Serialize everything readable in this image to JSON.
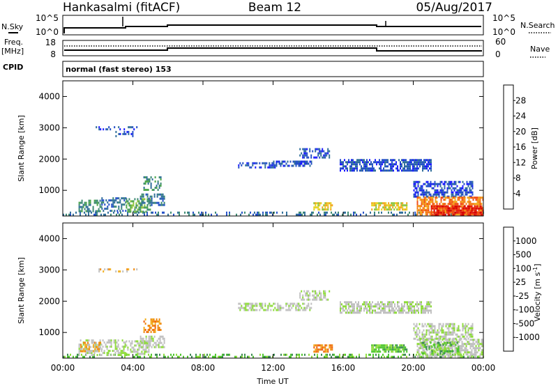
{
  "header": {
    "station": "Hankasalmi (fitACF)",
    "beam": "Beam 12",
    "date": "05/Aug/2017"
  },
  "status_panels": {
    "nsky_label": "N.Sky",
    "nsearch_label": "N.Search",
    "freq_label_1": "Freq.",
    "freq_label_2": "[MHz]",
    "nave_label": "Nave",
    "cpid_label": "CPID",
    "cpid_text": "normal (fast stereo) 153",
    "noise_ticks_left": [
      "10^5",
      "10^0"
    ],
    "noise_ticks_right": [
      "10^5",
      "10^0"
    ],
    "freq_ticks_left": [
      "18",
      "8"
    ],
    "nave_ticks_right": [
      "60",
      "0"
    ]
  },
  "chart_data": [
    {
      "type": "heatmap",
      "quantity": "power",
      "ylabel": "Slant Range [km]",
      "xlabel": "Time UT",
      "xlim_hours": [
        0,
        24
      ],
      "ylim_km": [
        180,
        4500
      ],
      "x_ticks": [
        "00:00",
        "04:00",
        "08:00",
        "12:00",
        "16:00",
        "20:00",
        "00:00"
      ],
      "y_ticks": [
        "1000",
        "2000",
        "3000",
        "4000"
      ],
      "colorbar": {
        "label": "Power [dB]",
        "tick_labels": [
          "4",
          "8",
          "12",
          "16",
          "20",
          "24",
          "28"
        ],
        "colors": [
          "#1a1aff",
          "#2450c8",
          "#2f6e9a",
          "#3c8a72",
          "#4da64b",
          "#8cc43a",
          "#e6d21e",
          "#f2a51a",
          "#f47b18",
          "#f04a14",
          "#e61c10",
          "#d40000"
        ]
      },
      "echo_regions": [
        {
          "t0": 0.0,
          "t1": 24.0,
          "r0": 200,
          "r1": 320,
          "level": 2,
          "density": 0.35
        },
        {
          "t0": 0.9,
          "t1": 2.2,
          "r0": 300,
          "r1": 700,
          "level": 3,
          "density": 0.55
        },
        {
          "t0": 2.2,
          "t1": 3.6,
          "r0": 350,
          "r1": 780,
          "level": 2,
          "density": 0.5
        },
        {
          "t0": 3.6,
          "t1": 5.0,
          "r0": 300,
          "r1": 750,
          "level": 4,
          "density": 0.6
        },
        {
          "t0": 4.4,
          "t1": 5.8,
          "r0": 500,
          "r1": 900,
          "level": 2,
          "density": 0.55
        },
        {
          "t0": 4.6,
          "t1": 5.6,
          "r0": 1000,
          "r1": 1450,
          "level": 3,
          "density": 0.35
        },
        {
          "t0": 1.8,
          "t1": 4.2,
          "r0": 2950,
          "r1": 3050,
          "level": 1,
          "density": 0.3
        },
        {
          "t0": 3.0,
          "t1": 4.0,
          "r0": 2700,
          "r1": 2900,
          "level": 1,
          "density": 0.3
        },
        {
          "t0": 10.0,
          "t1": 12.2,
          "r0": 1700,
          "r1": 1900,
          "level": 1,
          "density": 0.55
        },
        {
          "t0": 12.0,
          "t1": 14.2,
          "r0": 1750,
          "r1": 1950,
          "level": 1,
          "density": 0.6
        },
        {
          "t0": 13.5,
          "t1": 15.2,
          "r0": 2050,
          "r1": 2350,
          "level": 1,
          "density": 0.55
        },
        {
          "t0": 14.3,
          "t1": 15.4,
          "r0": 400,
          "r1": 620,
          "level": 6,
          "density": 0.7
        },
        {
          "t0": 15.8,
          "t1": 21.0,
          "r0": 1650,
          "r1": 2000,
          "level": 1,
          "density": 0.7
        },
        {
          "t0": 17.6,
          "t1": 19.6,
          "r0": 400,
          "r1": 620,
          "level": 6,
          "density": 0.75
        },
        {
          "t0": 20.0,
          "t1": 23.4,
          "r0": 800,
          "r1": 1300,
          "level": 1,
          "density": 0.6
        },
        {
          "t0": 20.2,
          "t1": 24.0,
          "r0": 250,
          "r1": 800,
          "level": 8,
          "density": 0.7
        },
        {
          "t0": 21.0,
          "t1": 24.0,
          "r0": 250,
          "r1": 520,
          "level": 10,
          "density": 0.75
        }
      ]
    },
    {
      "type": "heatmap",
      "quantity": "velocity",
      "ylabel": "Slant Range [km]",
      "xlabel": "Time UT",
      "xlim_hours": [
        0,
        24
      ],
      "ylim_km": [
        180,
        4500
      ],
      "x_ticks": [
        "00:00",
        "04:00",
        "08:00",
        "12:00",
        "16:00",
        "20:00",
        "00:00"
      ],
      "y_ticks": [
        "1000",
        "2000",
        "3000",
        "4000"
      ],
      "colorbar": {
        "label": "Velocity [m s^-1]",
        "tick_labels": [
          "1000",
          "500",
          "100",
          "25",
          "-25",
          "-100",
          "-500",
          "-1000"
        ],
        "colors": [
          "#1a2aff",
          "#2348b8",
          "#2d6a8a",
          "#3b8a52",
          "#4cc52c",
          "#8edc3a",
          "#c0c0c0",
          "#c0c0c0",
          "#f2b020",
          "#f08a10",
          "#f06010",
          "#f03010",
          "#e60000"
        ]
      },
      "echo_regions": [
        {
          "t0": 0.0,
          "t1": 24.0,
          "r0": 200,
          "r1": 320,
          "level": 4,
          "density": 0.35
        },
        {
          "t0": 0.9,
          "t1": 3.6,
          "r0": 300,
          "r1": 780,
          "level": 6,
          "density": 0.5
        },
        {
          "t0": 1.0,
          "t1": 2.2,
          "r0": 400,
          "r1": 700,
          "level": 8,
          "density": 0.45
        },
        {
          "t0": 3.6,
          "t1": 5.0,
          "r0": 300,
          "r1": 750,
          "level": 6,
          "density": 0.55
        },
        {
          "t0": 4.4,
          "t1": 5.8,
          "r0": 500,
          "r1": 900,
          "level": 6,
          "density": 0.6
        },
        {
          "t0": 4.6,
          "t1": 5.6,
          "r0": 1000,
          "r1": 1450,
          "level": 9,
          "density": 0.35
        },
        {
          "t0": 1.8,
          "t1": 4.2,
          "r0": 2950,
          "r1": 3050,
          "level": 8,
          "density": 0.3
        },
        {
          "t0": 10.0,
          "t1": 14.2,
          "r0": 1700,
          "r1": 1950,
          "level": 6,
          "density": 0.55
        },
        {
          "t0": 13.5,
          "t1": 15.2,
          "r0": 2050,
          "r1": 2350,
          "level": 6,
          "density": 0.5
        },
        {
          "t0": 14.3,
          "t1": 15.4,
          "r0": 400,
          "r1": 620,
          "level": 9,
          "density": 0.7
        },
        {
          "t0": 15.8,
          "t1": 21.0,
          "r0": 1650,
          "r1": 2000,
          "level": 6,
          "density": 0.7
        },
        {
          "t0": 17.6,
          "t1": 19.6,
          "r0": 400,
          "r1": 620,
          "level": 4,
          "density": 0.8
        },
        {
          "t0": 20.0,
          "t1": 23.4,
          "r0": 800,
          "r1": 1300,
          "level": 6,
          "density": 0.55
        },
        {
          "t0": 20.2,
          "t1": 24.0,
          "r0": 250,
          "r1": 800,
          "level": 6,
          "density": 0.7
        },
        {
          "t0": 20.4,
          "t1": 22.6,
          "r0": 300,
          "r1": 700,
          "level": 4,
          "density": 0.4
        }
      ]
    }
  ]
}
